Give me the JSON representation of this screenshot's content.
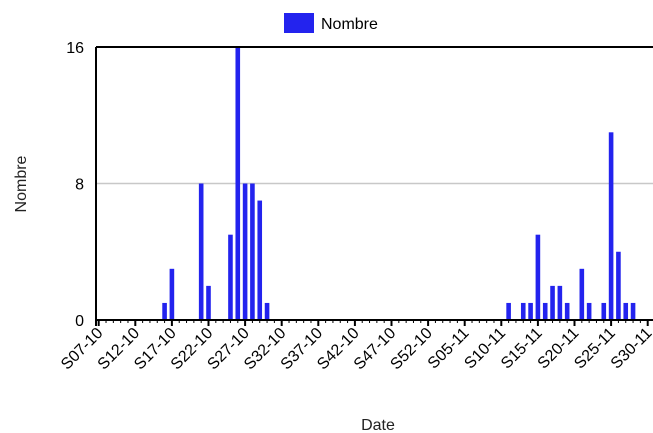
{
  "chart_data": {
    "type": "bar",
    "xlabel": "Date",
    "ylabel": "Nombre",
    "ylim": [
      0,
      16
    ],
    "yticks": [
      0,
      8,
      16
    ],
    "grid": "horizontal",
    "legend": "top-center",
    "bar_color": "#2323ee",
    "week_labels": [
      "S07-10",
      "S12-10",
      "S17-10",
      "S22-10",
      "S27-10",
      "S32-10",
      "S37-10",
      "S42-10",
      "S47-10",
      "S52-10",
      "S05-11",
      "S10-11",
      "S15-11",
      "S20-11",
      "S25-11",
      "S30-11"
    ],
    "series": [
      {
        "name": "Nombre",
        "values": [
          {
            "week": "S16-10",
            "value": 1
          },
          {
            "week": "S17-10",
            "value": 3
          },
          {
            "week": "S21-10",
            "value": 8
          },
          {
            "week": "S22-10",
            "value": 2
          },
          {
            "week": "S25-10",
            "value": 5
          },
          {
            "week": "S26-10",
            "value": 16
          },
          {
            "week": "S27-10",
            "value": 8
          },
          {
            "week": "S28-10",
            "value": 8
          },
          {
            "week": "S29-10",
            "value": 7
          },
          {
            "week": "S30-10",
            "value": 1
          },
          {
            "week": "S11-11",
            "value": 1
          },
          {
            "week": "S13-11",
            "value": 1
          },
          {
            "week": "S14-11",
            "value": 1
          },
          {
            "week": "S15-11",
            "value": 5
          },
          {
            "week": "S16-11",
            "value": 1
          },
          {
            "week": "S17-11",
            "value": 2
          },
          {
            "week": "S18-11",
            "value": 2
          },
          {
            "week": "S19-11",
            "value": 1
          },
          {
            "week": "S21-11",
            "value": 3
          },
          {
            "week": "S22-11",
            "value": 1
          },
          {
            "week": "S24-11",
            "value": 1
          },
          {
            "week": "S25-11",
            "value": 11
          },
          {
            "week": "S26-11",
            "value": 4
          },
          {
            "week": "S27-11",
            "value": 1
          },
          {
            "week": "S28-11",
            "value": 1
          }
        ]
      }
    ]
  }
}
